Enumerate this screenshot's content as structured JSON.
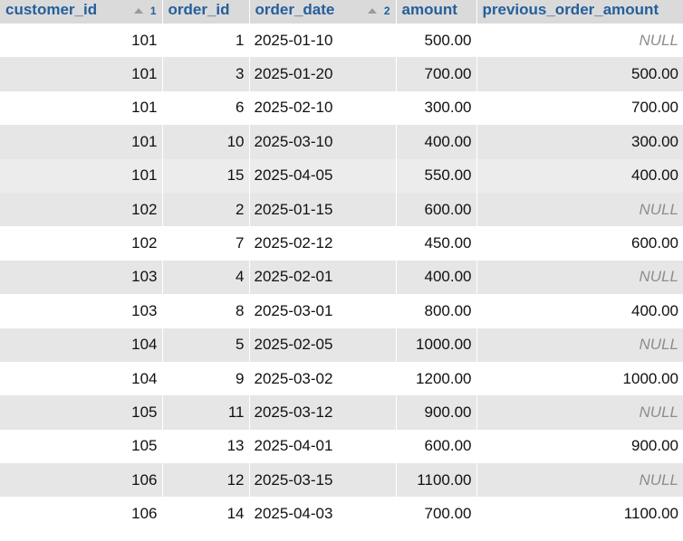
{
  "table": {
    "columns": [
      {
        "key": "customer_id",
        "label": "customer_id",
        "sort_order": "1",
        "sorted": true
      },
      {
        "key": "order_id",
        "label": "order_id",
        "sort_order": "",
        "sorted": false
      },
      {
        "key": "order_date",
        "label": "order_date",
        "sort_order": "2",
        "sorted": true
      },
      {
        "key": "amount",
        "label": "amount",
        "sort_order": "",
        "sorted": false
      },
      {
        "key": "previous_order_amount",
        "label": "previous_order_amount",
        "sort_order": "",
        "sorted": false
      }
    ],
    "rows": [
      {
        "customer_id": "101",
        "order_id": "1",
        "order_date": "2025-01-10",
        "amount": "500.00",
        "previous_order_amount": "NULL"
      },
      {
        "customer_id": "101",
        "order_id": "3",
        "order_date": "2025-01-20",
        "amount": "700.00",
        "previous_order_amount": "500.00"
      },
      {
        "customer_id": "101",
        "order_id": "6",
        "order_date": "2025-02-10",
        "amount": "300.00",
        "previous_order_amount": "700.00"
      },
      {
        "customer_id": "101",
        "order_id": "10",
        "order_date": "2025-03-10",
        "amount": "400.00",
        "previous_order_amount": "300.00"
      },
      {
        "customer_id": "101",
        "order_id": "15",
        "order_date": "2025-04-05",
        "amount": "550.00",
        "previous_order_amount": "400.00"
      },
      {
        "customer_id": "102",
        "order_id": "2",
        "order_date": "2025-01-15",
        "amount": "600.00",
        "previous_order_amount": "NULL"
      },
      {
        "customer_id": "102",
        "order_id": "7",
        "order_date": "2025-02-12",
        "amount": "450.00",
        "previous_order_amount": "600.00"
      },
      {
        "customer_id": "103",
        "order_id": "4",
        "order_date": "2025-02-01",
        "amount": "400.00",
        "previous_order_amount": "NULL"
      },
      {
        "customer_id": "103",
        "order_id": "8",
        "order_date": "2025-03-01",
        "amount": "800.00",
        "previous_order_amount": "400.00"
      },
      {
        "customer_id": "104",
        "order_id": "5",
        "order_date": "2025-02-05",
        "amount": "1000.00",
        "previous_order_amount": "NULL"
      },
      {
        "customer_id": "104",
        "order_id": "9",
        "order_date": "2025-03-02",
        "amount": "1200.00",
        "previous_order_amount": "1000.00"
      },
      {
        "customer_id": "105",
        "order_id": "11",
        "order_date": "2025-03-12",
        "amount": "900.00",
        "previous_order_amount": "NULL"
      },
      {
        "customer_id": "105",
        "order_id": "13",
        "order_date": "2025-04-01",
        "amount": "600.00",
        "previous_order_amount": "900.00"
      },
      {
        "customer_id": "106",
        "order_id": "12",
        "order_date": "2025-03-15",
        "amount": "1100.00",
        "previous_order_amount": "NULL"
      },
      {
        "customer_id": "106",
        "order_id": "14",
        "order_date": "2025-04-03",
        "amount": "700.00",
        "previous_order_amount": "1100.00"
      }
    ],
    "hover_row": 4,
    "null_text": "NULL"
  },
  "colors": {
    "header_bg": "#dadada",
    "header_link": "#245f9b",
    "row_even": "#e6e6e6",
    "row_hover": "#ececec",
    "null_text": "#8d8d8d"
  },
  "icons": {
    "sort": "sort-ascending-triangle-icon"
  }
}
